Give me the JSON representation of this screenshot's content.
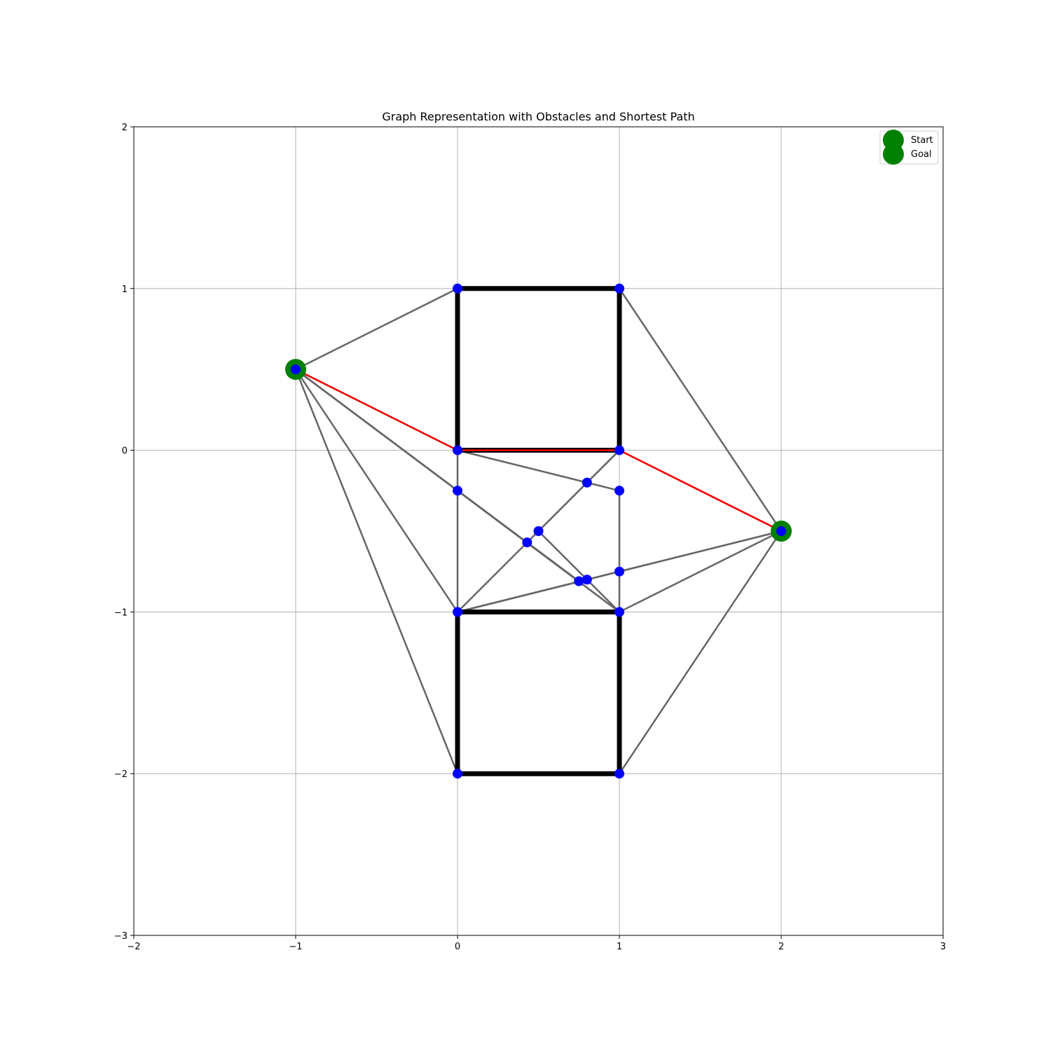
{
  "chart_data": {
    "type": "scatter",
    "title": "Graph Representation with Obstacles and Shortest Path",
    "xlabel": "",
    "ylabel": "",
    "xlim": [
      -2,
      3
    ],
    "ylim": [
      -3,
      2
    ],
    "xticks": [
      -2,
      -1,
      0,
      1,
      2,
      3
    ],
    "yticks": [
      -3,
      -2,
      -1,
      0,
      1,
      2
    ],
    "grid": true,
    "legend_position": "top-right",
    "legend": [
      {
        "label": "Start",
        "color": "#008000"
      },
      {
        "label": "Goal",
        "color": "#008000"
      }
    ],
    "colors": {
      "node": "#0000ff",
      "edge": "#666666",
      "obstacle": "#000000",
      "path": "#ff0000",
      "start_goal": "#008000",
      "grid": "#b0b0b0"
    },
    "obstacles": [
      {
        "polygon": [
          [
            0,
            0
          ],
          [
            1,
            0
          ],
          [
            1,
            1
          ],
          [
            0,
            1
          ]
        ]
      },
      {
        "polygon": [
          [
            0,
            -2
          ],
          [
            1,
            -2
          ],
          [
            1,
            -1
          ],
          [
            0,
            -1
          ]
        ]
      }
    ],
    "nodes": [
      [
        -1,
        0.5
      ],
      [
        2,
        -0.5
      ],
      [
        0,
        1
      ],
      [
        1,
        1
      ],
      [
        0,
        0
      ],
      [
        1,
        0
      ],
      [
        0,
        -1
      ],
      [
        1,
        -1
      ],
      [
        0,
        -2
      ],
      [
        1,
        -2
      ],
      [
        0,
        -0.25
      ],
      [
        1,
        -0.25
      ],
      [
        0.8,
        -0.2
      ],
      [
        0.5,
        -0.5
      ],
      [
        0.43,
        -0.57
      ],
      [
        0.75,
        -0.81
      ],
      [
        0.8,
        -0.8
      ],
      [
        1,
        -0.75
      ]
    ],
    "edges": [
      [
        [
          -1,
          0.5
        ],
        [
          0,
          1
        ]
      ],
      [
        [
          -1,
          0.5
        ],
        [
          0,
          0
        ]
      ],
      [
        [
          -1,
          0.5
        ],
        [
          0,
          -0.25
        ]
      ],
      [
        [
          -1,
          0.5
        ],
        [
          0,
          -1
        ]
      ],
      [
        [
          -1,
          0.5
        ],
        [
          0,
          -2
        ]
      ],
      [
        [
          -1,
          0.5
        ],
        [
          0.75,
          -0.81
        ]
      ],
      [
        [
          -1,
          0.5
        ],
        [
          1,
          -1
        ]
      ],
      [
        [
          1,
          1
        ],
        [
          2,
          -0.5
        ]
      ],
      [
        [
          1,
          0
        ],
        [
          2,
          -0.5
        ]
      ],
      [
        [
          0,
          0
        ],
        [
          0.8,
          -0.2
        ]
      ],
      [
        [
          0.8,
          -0.2
        ],
        [
          1,
          -0.25
        ]
      ],
      [
        [
          1,
          0
        ],
        [
          0.5,
          -0.5
        ]
      ],
      [
        [
          1,
          0
        ],
        [
          0.43,
          -0.57
        ]
      ],
      [
        [
          0.43,
          -0.57
        ],
        [
          0,
          -1
        ]
      ],
      [
        [
          0,
          0
        ],
        [
          0,
          -1
        ]
      ],
      [
        [
          1,
          -0.25
        ],
        [
          1,
          -0.75
        ]
      ],
      [
        [
          1,
          -0.75
        ],
        [
          1,
          -1
        ]
      ],
      [
        [
          0,
          -0.25
        ],
        [
          0.75,
          -0.81
        ]
      ],
      [
        [
          0,
          -0.25
        ],
        [
          1,
          -1
        ]
      ],
      [
        [
          0.5,
          -0.5
        ],
        [
          1,
          -1
        ]
      ],
      [
        [
          0,
          -1
        ],
        [
          0.8,
          -0.8
        ]
      ],
      [
        [
          0.8,
          -0.8
        ],
        [
          1,
          -0.75
        ]
      ],
      [
        [
          1,
          -0.75
        ],
        [
          2,
          -0.5
        ]
      ],
      [
        [
          0,
          -1
        ],
        [
          2,
          -0.5
        ]
      ],
      [
        [
          1,
          -1
        ],
        [
          2,
          -0.5
        ]
      ],
      [
        [
          1,
          -2
        ],
        [
          2,
          -0.5
        ]
      ]
    ],
    "shortest_path": [
      [
        -1,
        0.5
      ],
      [
        0,
        0
      ],
      [
        1,
        0
      ],
      [
        2,
        -0.5
      ]
    ],
    "start": [
      -1,
      0.5
    ],
    "goal": [
      2,
      -0.5
    ]
  }
}
